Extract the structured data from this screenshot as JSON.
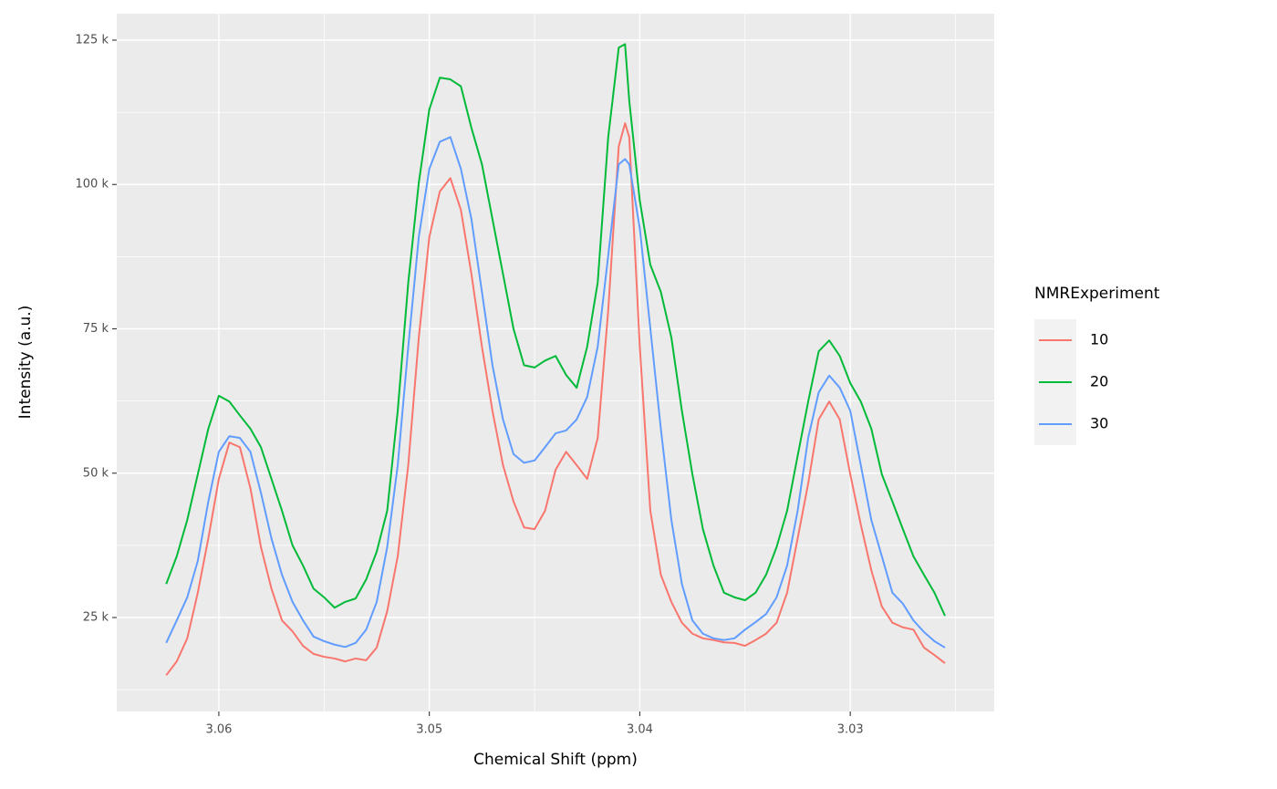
{
  "chart_data": {
    "type": "line",
    "xlabel": "Chemical Shift (ppm)",
    "ylabel": "Intensity (a.u.)",
    "legend_title": "NMRExperiment",
    "legend_position": "right",
    "x": [
      3.0625,
      3.062,
      3.0615,
      3.061,
      3.0605,
      3.06,
      3.0595,
      3.059,
      3.0585,
      3.058,
      3.0575,
      3.057,
      3.0565,
      3.056,
      3.0555,
      3.055,
      3.0545,
      3.054,
      3.0535,
      3.053,
      3.0525,
      3.052,
      3.0515,
      3.051,
      3.0505,
      3.05,
      3.0495,
      3.049,
      3.0485,
      3.048,
      3.0475,
      3.047,
      3.0465,
      3.046,
      3.0455,
      3.045,
      3.0445,
      3.044,
      3.0435,
      3.043,
      3.0425,
      3.042,
      3.0415,
      3.041,
      3.0407,
      3.0405,
      3.04,
      3.0395,
      3.039,
      3.0385,
      3.038,
      3.0375,
      3.037,
      3.0365,
      3.036,
      3.0355,
      3.035,
      3.0345,
      3.034,
      3.0335,
      3.033,
      3.0325,
      3.032,
      3.0315,
      3.031,
      3.0305,
      3.03,
      3.0295,
      3.029,
      3.0285,
      3.028,
      3.0275,
      3.027,
      3.0265,
      3.026,
      3.0255
    ],
    "series": [
      {
        "name": "10",
        "color": "#F8766D",
        "values": [
          15000,
          17400,
          21400,
          29300,
          38700,
          49000,
          55300,
          54500,
          47400,
          37200,
          30000,
          24500,
          22600,
          20100,
          18700,
          18200,
          17900,
          17400,
          17900,
          17600,
          19800,
          26100,
          35600,
          51400,
          73500,
          90900,
          98800,
          101100,
          95600,
          84500,
          71900,
          60800,
          51400,
          45100,
          40600,
          40300,
          43500,
          50600,
          53700,
          51400,
          49000,
          56100,
          78200,
          106600,
          110600,
          108200,
          71900,
          43500,
          32400,
          27700,
          24100,
          22200,
          21400,
          21100,
          20700,
          20600,
          20100,
          21100,
          22200,
          24100,
          29300,
          38700,
          48200,
          59300,
          62400,
          59300,
          49800,
          41100,
          33200,
          26900,
          24100,
          23300,
          22900,
          19800,
          18500,
          17100
        ]
      },
      {
        "name": "20",
        "color": "#00BA38",
        "values": [
          30800,
          35600,
          41900,
          49800,
          57700,
          63400,
          62400,
          60000,
          57700,
          54500,
          49000,
          43500,
          37500,
          34000,
          30000,
          28500,
          26700,
          27700,
          28300,
          31600,
          36400,
          43500,
          60800,
          83000,
          100300,
          113000,
          118500,
          118200,
          117000,
          109800,
          103500,
          94000,
          84500,
          75000,
          68700,
          68300,
          69500,
          70300,
          67000,
          64800,
          71900,
          83000,
          108200,
          123700,
          124300,
          114500,
          97200,
          86100,
          81400,
          73500,
          60800,
          49800,
          40300,
          34000,
          29300,
          28500,
          28000,
          29300,
          32400,
          37200,
          43500,
          53000,
          62400,
          71100,
          73000,
          70300,
          65600,
          62400,
          57700,
          49800,
          45100,
          40300,
          35600,
          32400,
          29300,
          25300
        ]
      },
      {
        "name": "30",
        "color": "#619CFF",
        "values": [
          20600,
          24500,
          28500,
          34800,
          45100,
          53700,
          56400,
          56100,
          53700,
          46600,
          38700,
          32400,
          27700,
          24500,
          21700,
          20900,
          20300,
          19900,
          20600,
          22900,
          27700,
          37200,
          51400,
          71900,
          90900,
          102700,
          107400,
          108200,
          102700,
          94000,
          81400,
          68700,
          59300,
          53300,
          51800,
          52200,
          54500,
          56900,
          57400,
          59300,
          63200,
          71900,
          87700,
          103500,
          104400,
          103500,
          92400,
          75100,
          57700,
          41900,
          30800,
          24500,
          22200,
          21400,
          21100,
          21400,
          22900,
          24200,
          25600,
          28500,
          34000,
          43500,
          56100,
          64000,
          66900,
          64800,
          60800,
          51400,
          41900,
          35600,
          29300,
          27400,
          24500,
          22500,
          20900,
          19800
        ]
      }
    ],
    "xlim": [
      3.06485,
      3.02316
    ],
    "xticks": [
      3.06,
      3.05,
      3.04,
      3.03
    ],
    "ylim": [
      8730,
      129580
    ],
    "yticks": [
      {
        "value": 25000,
        "label": "25 k"
      },
      {
        "value": 50000,
        "label": "50 k"
      },
      {
        "value": 75000,
        "label": "75 k"
      },
      {
        "value": 100000,
        "label": "100 k"
      },
      {
        "value": 125000,
        "label": "125 k"
      }
    ],
    "grid": true
  }
}
